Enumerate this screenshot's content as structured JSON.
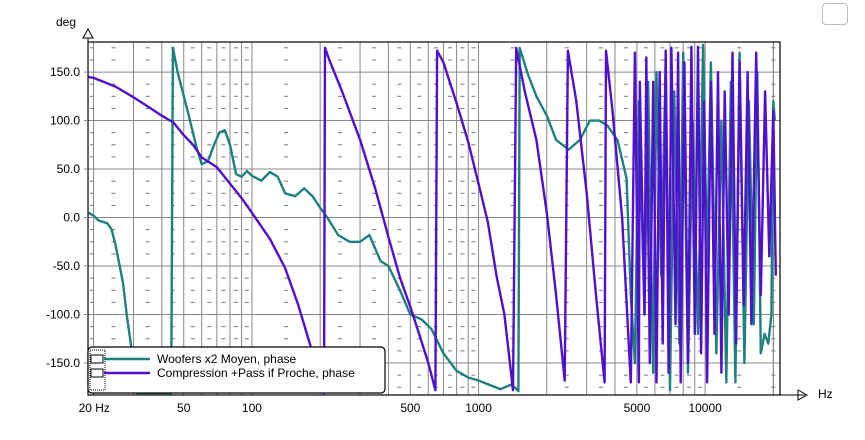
{
  "chart_data": {
    "type": "line",
    "title": "",
    "xlabel": "Hz",
    "ylabel": "deg",
    "xscale": "log",
    "xlim": [
      18.9,
      21400
    ],
    "ylim": [
      -183,
      181
    ],
    "grid": true,
    "legend_position": "bottom-left",
    "x_ticks": [
      {
        "v": 20,
        "label": "20 Hz"
      },
      {
        "v": 50,
        "label": "50"
      },
      {
        "v": 100,
        "label": "100"
      },
      {
        "v": 500,
        "label": "500"
      },
      {
        "v": 1000,
        "label": "1000"
      },
      {
        "v": 5000,
        "label": "5000"
      },
      {
        "v": 10000,
        "label": "10000"
      }
    ],
    "y_ticks": [
      {
        "v": 150,
        "label": "150.0"
      },
      {
        "v": 100,
        "label": "100.0"
      },
      {
        "v": 50,
        "label": "50.0"
      },
      {
        "v": 0,
        "label": "0.0"
      },
      {
        "v": -50,
        "label": "-50.0"
      },
      {
        "v": -100,
        "label": "-100.0"
      },
      {
        "v": -150,
        "label": "-150.0"
      }
    ],
    "series": [
      {
        "name": "Woofers x2 Moyen, phase",
        "color": "#1f8080",
        "points": [
          [
            19,
            5
          ],
          [
            20,
            2
          ],
          [
            21,
            -3
          ],
          [
            23,
            -6
          ],
          [
            24,
            -12
          ],
          [
            25,
            -28
          ],
          [
            27,
            -68
          ],
          [
            28,
            -100
          ],
          [
            30,
            -150
          ],
          [
            31,
            -181
          ],
          [
            44,
            -181
          ],
          [
            44.8,
            175
          ],
          [
            47,
            150
          ],
          [
            52,
            110
          ],
          [
            57,
            72
          ],
          [
            60,
            55
          ],
          [
            64,
            58
          ],
          [
            68,
            75
          ],
          [
            72,
            88
          ],
          [
            76,
            90
          ],
          [
            80,
            75
          ],
          [
            85,
            45
          ],
          [
            90,
            42
          ],
          [
            95,
            48
          ],
          [
            100,
            43
          ],
          [
            110,
            38
          ],
          [
            120,
            47
          ],
          [
            130,
            42
          ],
          [
            140,
            25
          ],
          [
            155,
            22
          ],
          [
            170,
            30
          ],
          [
            185,
            22
          ],
          [
            200,
            10
          ],
          [
            215,
            0
          ],
          [
            240,
            -18
          ],
          [
            270,
            -25
          ],
          [
            300,
            -25
          ],
          [
            330,
            -18
          ],
          [
            350,
            -32
          ],
          [
            370,
            -45
          ],
          [
            400,
            -50
          ],
          [
            450,
            -75
          ],
          [
            500,
            -100
          ],
          [
            560,
            -105
          ],
          [
            620,
            -115
          ],
          [
            700,
            -140
          ],
          [
            800,
            -158
          ],
          [
            900,
            -165
          ],
          [
            1000,
            -168
          ],
          [
            1100,
            -172
          ],
          [
            1250,
            -177
          ],
          [
            1400,
            -172
          ],
          [
            1500,
            -179
          ],
          [
            1520,
            175
          ],
          [
            1650,
            148
          ],
          [
            1800,
            125
          ],
          [
            2000,
            105
          ],
          [
            2200,
            80
          ],
          [
            2500,
            70
          ],
          [
            2800,
            80
          ],
          [
            3100,
            100
          ],
          [
            3400,
            100
          ],
          [
            3700,
            95
          ],
          [
            4100,
            80
          ],
          [
            4300,
            60
          ],
          [
            4500,
            40
          ],
          [
            4700,
            -80
          ],
          [
            4900,
            -150
          ],
          [
            5100,
            120
          ],
          [
            5400,
            -100
          ],
          [
            5600,
            140
          ],
          [
            5900,
            -160
          ],
          [
            6100,
            150
          ],
          [
            6400,
            -60
          ],
          [
            6700,
            160
          ],
          [
            7000,
            -178
          ],
          [
            7300,
            130
          ],
          [
            7700,
            -130
          ],
          [
            8000,
            170
          ],
          [
            8400,
            -160
          ],
          [
            8800,
            100
          ],
          [
            9300,
            -120
          ],
          [
            9800,
            178
          ],
          [
            10200,
            -50
          ],
          [
            10600,
            160
          ],
          [
            11200,
            -140
          ],
          [
            11800,
            100
          ],
          [
            12400,
            -170
          ],
          [
            13000,
            140
          ],
          [
            13600,
            -170
          ],
          [
            14200,
            170
          ],
          [
            14900,
            -150
          ],
          [
            15600,
            120
          ],
          [
            16400,
            -110
          ],
          [
            17000,
            150
          ],
          [
            17600,
            -140
          ],
          [
            18300,
            -120
          ],
          [
            19000,
            -130
          ],
          [
            19600,
            -100
          ],
          [
            20000,
            120
          ],
          [
            20300,
            100
          ]
        ]
      },
      {
        "name": "Compression +Pass if Proche, phase",
        "color": "#5010d0",
        "points": [
          [
            19,
            145
          ],
          [
            20,
            144
          ],
          [
            25,
            135
          ],
          [
            30,
            124
          ],
          [
            35,
            114
          ],
          [
            40,
            105
          ],
          [
            45,
            98
          ],
          [
            50,
            85
          ],
          [
            55,
            75
          ],
          [
            60,
            62
          ],
          [
            70,
            52
          ],
          [
            80,
            35
          ],
          [
            90,
            20
          ],
          [
            100,
            5
          ],
          [
            120,
            -22
          ],
          [
            140,
            -52
          ],
          [
            160,
            -90
          ],
          [
            180,
            -130
          ],
          [
            200,
            -165
          ],
          [
            208,
            -181
          ],
          [
            210,
            175
          ],
          [
            220,
            162
          ],
          [
            250,
            130
          ],
          [
            300,
            80
          ],
          [
            350,
            30
          ],
          [
            400,
            -20
          ],
          [
            450,
            -62
          ],
          [
            500,
            -92
          ],
          [
            550,
            -122
          ],
          [
            600,
            -150
          ],
          [
            645,
            -178
          ],
          [
            656,
            172
          ],
          [
            700,
            160
          ],
          [
            800,
            118
          ],
          [
            900,
            78
          ],
          [
            1000,
            35
          ],
          [
            1100,
            -5
          ],
          [
            1200,
            -60
          ],
          [
            1300,
            -100
          ],
          [
            1420,
            -178
          ],
          [
            1466,
            175
          ],
          [
            1600,
            130
          ],
          [
            1800,
            80
          ],
          [
            2000,
            5
          ],
          [
            2200,
            -80
          ],
          [
            2400,
            -168
          ],
          [
            2480,
            172
          ],
          [
            2700,
            120
          ],
          [
            3000,
            25
          ],
          [
            3300,
            -80
          ],
          [
            3600,
            -170
          ],
          [
            3650,
            172
          ],
          [
            3900,
            110
          ],
          [
            4300,
            0
          ],
          [
            4700,
            -170
          ],
          [
            4900,
            170
          ],
          [
            5100,
            -170
          ],
          [
            5150,
            140
          ],
          [
            5400,
            -100
          ],
          [
            5500,
            165
          ],
          [
            5700,
            -150
          ],
          [
            5900,
            140
          ],
          [
            6100,
            -170
          ],
          [
            6300,
            150
          ],
          [
            6500,
            -130
          ],
          [
            6700,
            172
          ],
          [
            6900,
            -160
          ],
          [
            7100,
            175
          ],
          [
            7400,
            -110
          ],
          [
            7600,
            170
          ],
          [
            7800,
            -170
          ],
          [
            8100,
            160
          ],
          [
            8400,
            -150
          ],
          [
            8700,
            176
          ],
          [
            9000,
            -120
          ],
          [
            9300,
            176
          ],
          [
            9600,
            -140
          ],
          [
            9900,
            120
          ],
          [
            10200,
            -170
          ],
          [
            10600,
            140
          ],
          [
            11000,
            -120
          ],
          [
            11400,
            150
          ],
          [
            11800,
            -160
          ],
          [
            12200,
            130
          ],
          [
            12700,
            -100
          ],
          [
            13200,
            170
          ],
          [
            13700,
            -130
          ],
          [
            14200,
            160
          ],
          [
            14800,
            -90
          ],
          [
            15400,
            150
          ],
          [
            16000,
            -110
          ],
          [
            16800,
            170
          ],
          [
            17600,
            -80
          ],
          [
            18400,
            130
          ],
          [
            19200,
            -40
          ],
          [
            20000,
            110
          ],
          [
            20500,
            -60
          ]
        ]
      }
    ]
  }
}
